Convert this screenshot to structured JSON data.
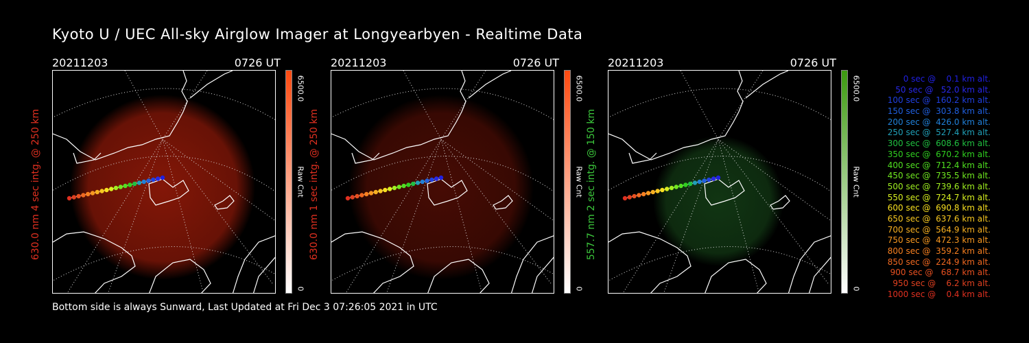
{
  "title": "Kyoto U / UEC All-sky Airglow Imager at Longyearbyen - Realtime Data",
  "footer": "Bottom side is always Sunward, Last Updated at Fri Dec  3 07:26:05 2021 in UTC",
  "panels": [
    {
      "date": "20211203",
      "time": "0726 UT",
      "ylabel": "630.0 nm 4 sec intg. @ 250 km",
      "label_color": "#e03020",
      "cb_max": "6500.0",
      "cb_min": "0",
      "cb_unit": "Raw Cnt",
      "glow_color": "#8a1808",
      "cb_color": "#ff4a10"
    },
    {
      "date": "20211203",
      "time": "0726 UT",
      "ylabel": "630.0 nm 1 sec intg. @ 250 km",
      "label_color": "#e03020",
      "cb_max": "6500.0",
      "cb_min": "0",
      "cb_unit": "Raw Cnt",
      "glow_color": "#4a0c04",
      "cb_color": "#ff4a10"
    },
    {
      "date": "20211203",
      "time": "0726 UT",
      "ylabel": "557.7 nm 2 sec intg. @ 150 km",
      "label_color": "#3cc83c",
      "cb_max": "6500.0",
      "cb_min": "0",
      "cb_unit": "Raw Cnt",
      "glow_color": "#123814",
      "cb_color": "#3c9a10"
    }
  ],
  "legend": [
    {
      "text": "0 sec @    0.1 km alt.",
      "color": "#2020e0"
    },
    {
      "text": "50 sec @   52.0 km alt.",
      "color": "#2828e8"
    },
    {
      "text": "100 sec @  160.2 km alt.",
      "color": "#2040e0"
    },
    {
      "text": "150 sec @  303.8 km alt.",
      "color": "#2060e0"
    },
    {
      "text": "200 sec @  426.0 km alt.",
      "color": "#2080d8"
    },
    {
      "text": "250 sec @  527.4 km alt.",
      "color": "#20a0b8"
    },
    {
      "text": "300 sec @  608.6 km alt.",
      "color": "#20c040"
    },
    {
      "text": "350 sec @  670.2 km alt.",
      "color": "#30d020"
    },
    {
      "text": "400 sec @  712.4 km alt.",
      "color": "#50e020"
    },
    {
      "text": "450 sec @  735.5 km alt.",
      "color": "#70e820"
    },
    {
      "text": "500 sec @  739.6 km alt.",
      "color": "#a0f020"
    },
    {
      "text": "550 sec @  724.7 km alt.",
      "color": "#d8f020"
    },
    {
      "text": "600 sec @  690.8 km alt.",
      "color": "#f8e020"
    },
    {
      "text": "650 sec @  637.6 km alt.",
      "color": "#f8c820"
    },
    {
      "text": "700 sec @  564.9 km alt.",
      "color": "#f8b020"
    },
    {
      "text": "750 sec @  472.3 km alt.",
      "color": "#f89820"
    },
    {
      "text": "800 sec @  359.2 km alt.",
      "color": "#f88020"
    },
    {
      "text": "850 sec @  224.9 km alt.",
      "color": "#f06820"
    },
    {
      "text": "900 sec @   68.7 km alt.",
      "color": "#e85020"
    },
    {
      "text": "950 sec @    6.2 km alt.",
      "color": "#e04020"
    },
    {
      "text": "1000 sec @    0.4 km alt.",
      "color": "#e03020"
    }
  ]
}
